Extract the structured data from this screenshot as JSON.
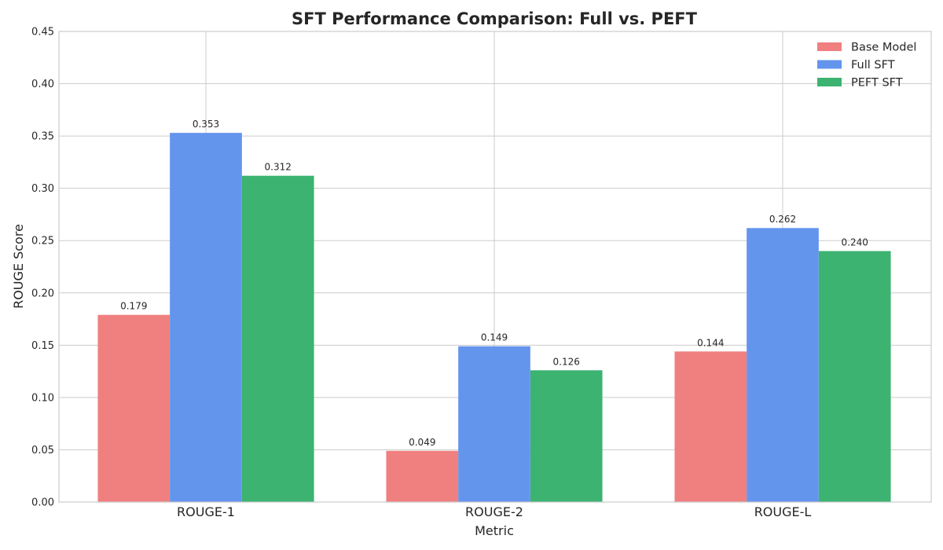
{
  "chart_data": {
    "type": "bar",
    "title": "SFT Performance Comparison: Full vs. PEFT",
    "xlabel": "Metric",
    "ylabel": "ROUGE Score",
    "categories": [
      "ROUGE-1",
      "ROUGE-2",
      "ROUGE-L"
    ],
    "ylim": [
      0,
      0.45
    ],
    "yticks": [
      0.0,
      0.05,
      0.1,
      0.15,
      0.2,
      0.25,
      0.3,
      0.35,
      0.4,
      0.45
    ],
    "ytick_labels": [
      "0.00",
      "0.05",
      "0.10",
      "0.15",
      "0.20",
      "0.25",
      "0.30",
      "0.35",
      "0.40",
      "0.45"
    ],
    "grid": true,
    "legend_position": "top-right",
    "series": [
      {
        "name": "Base Model",
        "color": "#f08080",
        "values": [
          0.179,
          0.049,
          0.144
        ],
        "labels": [
          "0.179",
          "0.049",
          "0.144"
        ]
      },
      {
        "name": "Full SFT",
        "color": "#6495ed",
        "values": [
          0.353,
          0.149,
          0.262
        ],
        "labels": [
          "0.353",
          "0.149",
          "0.262"
        ]
      },
      {
        "name": "PEFT SFT",
        "color": "#3cb371",
        "values": [
          0.312,
          0.126,
          0.24
        ],
        "labels": [
          "0.312",
          "0.126",
          "0.240"
        ]
      }
    ]
  }
}
